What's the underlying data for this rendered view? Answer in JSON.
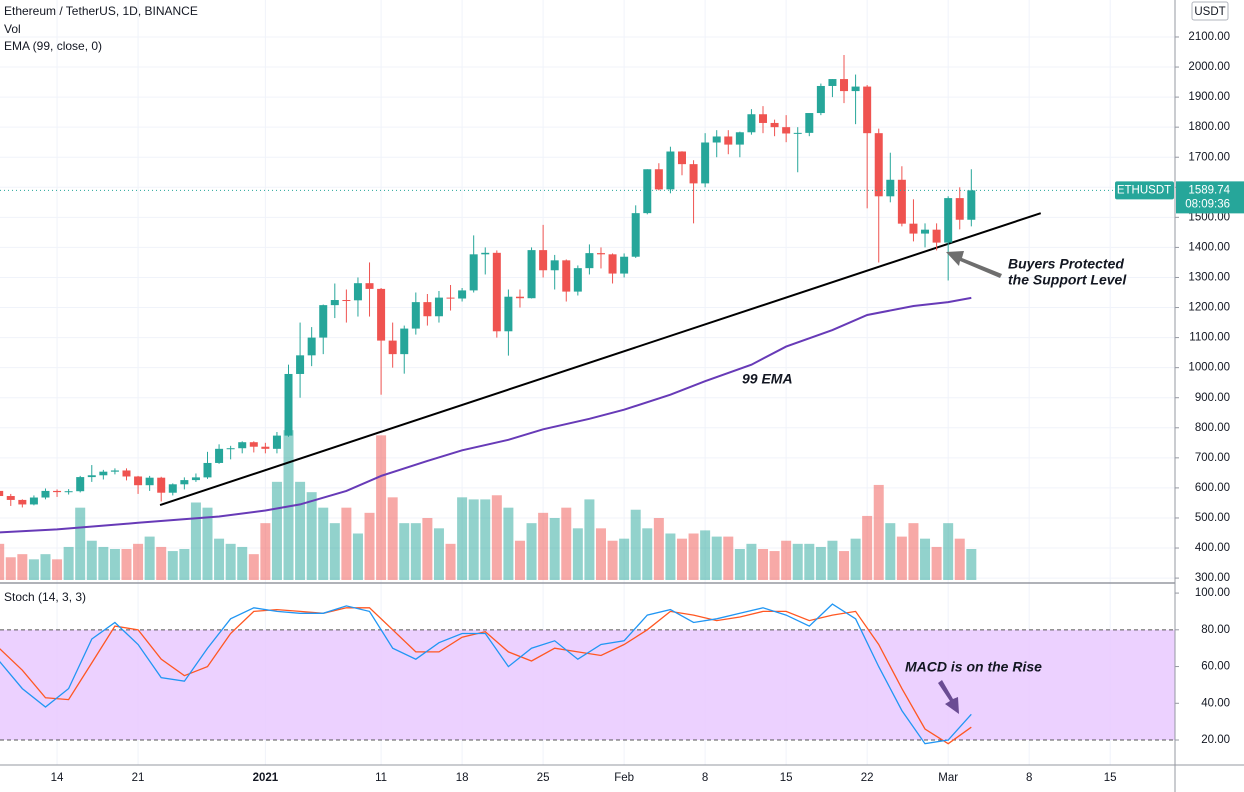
{
  "chart_data": {
    "type": "candlestick",
    "title": "Ethereum / TetherUS, 1D, BINANCE",
    "volume_label": "Vol",
    "ema_label": "EMA (99, close, 0)",
    "currency": "USDT",
    "symbol": "ETHUSDT",
    "countdown": "08:09:36",
    "x": [
      9,
      10,
      11,
      12,
      13,
      14,
      15,
      16,
      17,
      18,
      19,
      20,
      21,
      22,
      23,
      24,
      25,
      26,
      27,
      28,
      29,
      30,
      31,
      32,
      33,
      34,
      35,
      36,
      37,
      38,
      39,
      40,
      41,
      42,
      43,
      44,
      45,
      46,
      47,
      48,
      49,
      50,
      51,
      52,
      53,
      54,
      55,
      56,
      57,
      58,
      59,
      60,
      61,
      62,
      63,
      64,
      65,
      66,
      67,
      68,
      69,
      70,
      71,
      72,
      73,
      74,
      75,
      76,
      77,
      78,
      79,
      80,
      81,
      82,
      83,
      84,
      85,
      86,
      87,
      88,
      89,
      90,
      91,
      92,
      93
    ],
    "open": [
      590,
      573,
      560,
      545,
      568,
      590,
      586,
      589,
      636,
      642,
      654,
      658,
      638,
      609,
      634,
      584,
      612,
      626,
      635,
      683,
      730,
      732,
      752,
      737,
      730,
      774,
      979,
      1041,
      1100,
      1208,
      1225,
      1224,
      1281,
      1262,
      1090,
      1045,
      1130,
      1218,
      1171,
      1233,
      1230,
      1257,
      1377,
      1382,
      1121,
      1236,
      1231,
      1391,
      1324,
      1357,
      1253,
      1331,
      1381,
      1377,
      1313,
      1369,
      1514,
      1660,
      1593,
      1719,
      1677,
      1613,
      1749,
      1769,
      1742,
      1783,
      1843,
      1814,
      1800,
      1779,
      1781,
      1847,
      1937,
      1960,
      1920,
      1935,
      1780,
      1570,
      1625,
      1479,
      1446,
      1459,
      1416,
      1564,
      1492
    ],
    "high": [
      595,
      580,
      562,
      575,
      598,
      595,
      596,
      640,
      676,
      660,
      665,
      665,
      640,
      640,
      637,
      615,
      635,
      648,
      720,
      745,
      740,
      755,
      755,
      750,
      786,
      1010,
      1150,
      1135,
      1210,
      1280,
      1260,
      1300,
      1350,
      1265,
      1150,
      1140,
      1250,
      1245,
      1255,
      1275,
      1265,
      1440,
      1400,
      1390,
      1260,
      1260,
      1400,
      1475,
      1375,
      1360,
      1340,
      1410,
      1400,
      1380,
      1380,
      1540,
      1660,
      1680,
      1735,
      1720,
      1690,
      1780,
      1790,
      1790,
      1785,
      1860,
      1870,
      1825,
      1840,
      1800,
      1840,
      1945,
      1960,
      2040,
      1975,
      1940,
      1795,
      1715,
      1670,
      1560,
      1480,
      1480,
      1570,
      1600,
      1660
    ],
    "low": [
      535,
      540,
      535,
      542,
      562,
      570,
      578,
      585,
      620,
      628,
      645,
      625,
      580,
      590,
      555,
      575,
      595,
      620,
      630,
      680,
      695,
      715,
      718,
      715,
      715,
      770,
      900,
      1005,
      1045,
      1165,
      1150,
      1170,
      1170,
      910,
      1000,
      980,
      1110,
      1140,
      1150,
      1190,
      1220,
      1250,
      1310,
      1100,
      1040,
      1200,
      1230,
      1300,
      1260,
      1220,
      1240,
      1310,
      1330,
      1280,
      1300,
      1365,
      1510,
      1590,
      1580,
      1640,
      1480,
      1600,
      1700,
      1710,
      1700,
      1775,
      1780,
      1770,
      1750,
      1650,
      1770,
      1840,
      1900,
      1880,
      1810,
      1530,
      1350,
      1550,
      1470,
      1420,
      1400,
      1390,
      1290,
      1460,
      1470
    ],
    "close": [
      573,
      560,
      545,
      568,
      590,
      586,
      589,
      636,
      642,
      654,
      658,
      638,
      609,
      634,
      584,
      612,
      626,
      635,
      683,
      730,
      732,
      752,
      737,
      730,
      774,
      979,
      1041,
      1100,
      1208,
      1225,
      1224,
      1281,
      1262,
      1090,
      1045,
      1130,
      1218,
      1171,
      1233,
      1230,
      1257,
      1377,
      1382,
      1121,
      1236,
      1231,
      1391,
      1324,
      1357,
      1253,
      1331,
      1381,
      1377,
      1313,
      1369,
      1514,
      1660,
      1593,
      1719,
      1677,
      1613,
      1749,
      1769,
      1742,
      1783,
      1843,
      1814,
      1800,
      1779,
      1781,
      1847,
      1937,
      1960,
      1920,
      1935,
      1780,
      1570,
      1625,
      1479,
      1446,
      1459,
      1416,
      1564,
      1492,
      1589.74
    ],
    "volume": [
      35,
      22,
      25,
      20,
      25,
      20,
      32,
      70,
      38,
      32,
      30,
      30,
      35,
      42,
      32,
      28,
      30,
      75,
      70,
      40,
      35,
      32,
      25,
      55,
      95,
      145,
      95,
      85,
      70,
      55,
      70,
      45,
      65,
      140,
      80,
      55,
      55,
      60,
      50,
      35,
      80,
      78,
      78,
      82,
      70,
      38,
      55,
      65,
      60,
      70,
      50,
      78,
      50,
      38,
      40,
      68,
      50,
      60,
      45,
      40,
      45,
      48,
      42,
      42,
      30,
      35,
      30,
      28,
      38,
      35,
      35,
      32,
      38,
      28,
      40,
      62,
      92,
      55,
      42,
      55,
      40,
      32,
      55,
      40,
      30
    ],
    "vlim": [
      0,
      300
    ],
    "up_color": "#26a69a",
    "down_color": "#ef5350",
    "xlim": [
      9.07,
      110.6
    ],
    "xticks": [
      14,
      21,
      {
        "value": 32,
        "label": "2021"
      },
      {
        "value": 42,
        "label": "11"
      },
      {
        "value": 49,
        "label": "18"
      },
      {
        "value": 56,
        "label": "25"
      },
      {
        "value": 63,
        "label": "Feb"
      },
      {
        "value": 70,
        "label": "8"
      },
      {
        "value": 77,
        "label": "15"
      },
      {
        "value": 84,
        "label": "22"
      },
      {
        "value": 91,
        "label": "Mar"
      },
      {
        "value": 98,
        "label": "8"
      },
      {
        "value": 105,
        "label": "15"
      }
    ],
    "ylim": [
      287,
      2223
    ],
    "yticks": [
      {
        "value": 300,
        "label": "300.00"
      },
      {
        "value": 400,
        "label": "400.00"
      },
      {
        "value": 500,
        "label": "500.00"
      },
      {
        "value": 600,
        "label": "600.00"
      },
      {
        "value": 700,
        "label": "700.00"
      },
      {
        "value": 800,
        "label": "800.00"
      },
      {
        "value": 900,
        "label": "900.00"
      },
      {
        "value": 1000,
        "label": "1000.00"
      },
      {
        "value": 1100,
        "label": "1100.00"
      },
      {
        "value": 1200,
        "label": "1200.00"
      },
      {
        "value": 1300,
        "label": "1300.00"
      },
      {
        "value": 1400,
        "label": "1400.00"
      },
      {
        "value": 1500,
        "label": "1500.00"
      },
      {
        "value": 1600,
        "label": "1600.00"
      },
      {
        "value": 1700,
        "label": "1700.00"
      },
      {
        "value": 1800,
        "label": "1800.00"
      },
      {
        "value": 1900,
        "label": "1900.00"
      },
      {
        "value": 2000,
        "label": "2000.00"
      },
      {
        "value": 2100,
        "label": "2100.00"
      }
    ],
    "grid": true,
    "ema": {
      "x": [
        9,
        14,
        21,
        28,
        32,
        35,
        39,
        42,
        46,
        49,
        53,
        56,
        60,
        63,
        67,
        70,
        74,
        77,
        81,
        84,
        88,
        91,
        93
      ],
      "values": [
        452,
        462,
        484,
        505,
        525,
        545,
        590,
        640,
        690,
        725,
        760,
        795,
        830,
        860,
        910,
        955,
        1010,
        1070,
        1125,
        1175,
        1205,
        1218,
        1232
      ],
      "color": "#673ab7"
    },
    "trendline": {
      "x": [
        22.9,
        99
      ],
      "y": [
        543,
        1514
      ],
      "color": "#000000"
    },
    "annotations": [
      "Buyers Protected",
      "the Support Level",
      "99 EMA",
      "MACD is on the Rise"
    ],
    "stoch": {
      "label": "Stoch (14, 3, 3)",
      "x": [
        9,
        11,
        13,
        15,
        17,
        19,
        21,
        23,
        25,
        27,
        29,
        31,
        33,
        35,
        37,
        39,
        41,
        43,
        45,
        47,
        49,
        51,
        53,
        55,
        57,
        59,
        61,
        63,
        65,
        67,
        69,
        71,
        73,
        75,
        77,
        79,
        81,
        83,
        85,
        87,
        89,
        91,
        93
      ],
      "k": [
        63,
        48,
        38,
        48,
        75,
        84,
        72,
        54,
        52,
        70,
        86,
        92,
        90,
        89,
        89,
        93,
        90,
        70,
        64,
        73,
        78,
        78,
        60,
        70,
        74,
        64,
        72,
        74,
        88,
        91,
        84,
        86,
        89,
        92,
        88,
        82,
        94,
        86,
        60,
        36,
        18,
        20,
        34
      ],
      "d": [
        70,
        58,
        43,
        42,
        62,
        82,
        80,
        64,
        55,
        60,
        78,
        90,
        91,
        90,
        89,
        92,
        92,
        80,
        68,
        68,
        76,
        79,
        68,
        63,
        70,
        68,
        66,
        72,
        80,
        90,
        88,
        85,
        87,
        90,
        90,
        85,
        88,
        90,
        72,
        48,
        26,
        18,
        27
      ],
      "k_color": "#2196f3",
      "d_color": "#ff5722",
      "ylim": [
        6.4,
        104.4
      ],
      "yticks": [
        {
          "value": 20,
          "label": "20.00"
        },
        {
          "value": 40,
          "label": "40.00"
        },
        {
          "value": 60,
          "label": "60.00"
        },
        {
          "value": 80,
          "label": "80.00"
        },
        {
          "value": 100,
          "label": "100.00"
        }
      ],
      "band": [
        20,
        80
      ],
      "band_color": "#e9c9ff"
    }
  }
}
